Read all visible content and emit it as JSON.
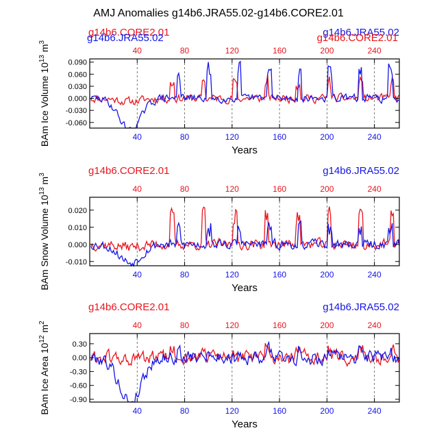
{
  "figure_title": "AMJ Anomalies g14b6.JRA55.02-g14b6.CORE2.01",
  "colors": {
    "core": "#e8141c",
    "jra": "#1414e6",
    "grid": "#555555",
    "frame": "#000000"
  },
  "chart_data": [
    {
      "type": "line",
      "panel_id": "ice-volume",
      "ylabel_text": "BAm Ice Volume 10",
      "ylabel_exp": "13",
      "ylabel_unit": " m",
      "ylabel_unit_exp": "3",
      "xlabel": "Years",
      "xlim": [
        0,
        261
      ],
      "ylim": [
        -0.074,
        0.098
      ],
      "yticks": [
        -0.06,
        -0.03,
        0.0,
        0.03,
        0.06,
        0.09
      ],
      "ytick_labels": [
        "-0.060",
        "-0.030",
        "0.000",
        "0.030",
        "0.060",
        "0.090"
      ],
      "xticks": [
        40,
        80,
        120,
        160,
        200,
        240
      ],
      "xtick_labels": [
        "40",
        "80",
        "120",
        "160",
        "200",
        "240"
      ],
      "grid_x": true,
      "legend_left": "g14b6.CORE2.01",
      "legend_left_overlap": "g14b6.JRA55.02",
      "legend_right": "g14b6.JRA55.02",
      "legend_right_overlap": "g14b6.CORE2.01",
      "series": [
        {
          "name": "g14b6.CORE2.01",
          "color": "#e8141c",
          "n": 261,
          "dip_depth": 0.008,
          "amp": 0.012,
          "spike_amp": 0.052,
          "spike_period": 26.5,
          "spike_phase": 95,
          "seed": 11
        },
        {
          "name": "g14b6.JRA55.02",
          "color": "#1414e6",
          "n": 261,
          "dip_depth": 0.078,
          "amp": 0.011,
          "spike_amp": 0.085,
          "spike_period": 25.5,
          "spike_phase": 74,
          "seed": 29
        }
      ]
    },
    {
      "type": "line",
      "panel_id": "snow-volume",
      "ylabel_text": "BAm Snow Volume 10",
      "ylabel_exp": "13",
      "ylabel_unit": " m",
      "ylabel_unit_exp": "3",
      "xlabel": "Years",
      "xlim": [
        0,
        261
      ],
      "ylim": [
        -0.0125,
        0.0275
      ],
      "yticks": [
        -0.01,
        0.0,
        0.01,
        0.02
      ],
      "ytick_labels": [
        "-0.010",
        "0.000",
        "0.010",
        "0.020"
      ],
      "xticks": [
        40,
        80,
        120,
        160,
        200,
        240
      ],
      "xtick_labels": [
        "40",
        "80",
        "120",
        "160",
        "200",
        "240"
      ],
      "grid_x": true,
      "legend_left": "g14b6.CORE2.01",
      "legend_right": "g14b6.JRA55.02",
      "series": [
        {
          "name": "g14b6.CORE2.01",
          "color": "#e8141c",
          "n": 261,
          "dip_depth": 0.0015,
          "amp": 0.0035,
          "spike_amp": 0.022,
          "spike_period": 26.5,
          "spike_phase": 95,
          "seed": 37
        },
        {
          "name": "g14b6.JRA55.02",
          "color": "#1414e6",
          "n": 261,
          "dip_depth": 0.0105,
          "amp": 0.0032,
          "spike_amp": 0.012,
          "spike_period": 25.5,
          "spike_phase": 74,
          "seed": 53
        }
      ]
    },
    {
      "type": "line",
      "panel_id": "ice-area",
      "ylabel_text": "BAm Ice Area 10",
      "ylabel_exp": "12",
      "ylabel_unit": " m",
      "ylabel_unit_exp": "2",
      "xlabel": "Years",
      "xlim": [
        0,
        261
      ],
      "ylim": [
        -0.96,
        0.52
      ],
      "yticks": [
        -0.9,
        -0.6,
        -0.3,
        0.0,
        0.3
      ],
      "ytick_labels": [
        "-0.90",
        "-0.60",
        "-0.30",
        "0.00",
        "0.30"
      ],
      "xticks": [
        40,
        80,
        120,
        160,
        200,
        240
      ],
      "xtick_labels": [
        "40",
        "80",
        "120",
        "160",
        "200",
        "240"
      ],
      "grid_x": true,
      "legend_left": "g14b6.CORE2.01",
      "legend_right": "g14b6.JRA55.02",
      "series": [
        {
          "name": "g14b6.CORE2.01",
          "color": "#e8141c",
          "n": 261,
          "dip_depth": 0.05,
          "amp": 0.18,
          "spike_amp": 0.22,
          "spike_period": 26.5,
          "spike_phase": 95,
          "seed": 61
        },
        {
          "name": "g14b6.JRA55.02",
          "color": "#1414e6",
          "n": 261,
          "dip_depth": 0.95,
          "amp": 0.17,
          "spike_amp": 0.18,
          "spike_period": 25.5,
          "spike_phase": 74,
          "seed": 79
        }
      ]
    }
  ]
}
